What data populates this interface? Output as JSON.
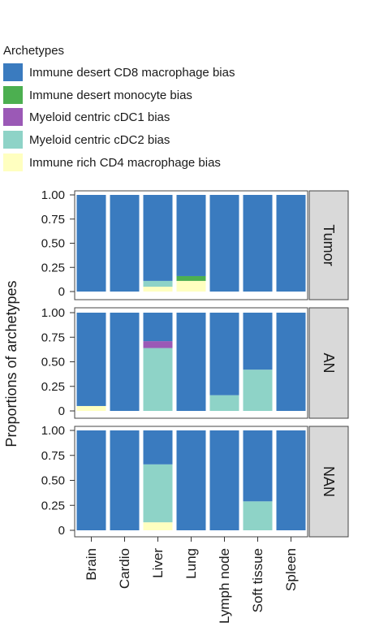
{
  "legend": {
    "title": "Archetypes",
    "items": [
      {
        "label": "Immune desert CD8 macrophage bias",
        "color": "#3a7bbf"
      },
      {
        "label": "Immune desert monocyte bias",
        "color": "#4caf50"
      },
      {
        "label": "Myeloid centric cDC1 bias",
        "color": "#9b59b6"
      },
      {
        "label": "Myeloid centric cDC2 bias",
        "color": "#8ed3c7"
      },
      {
        "label": "Immune rich CD4 macrophage bias",
        "color": "#ffffc0"
      }
    ]
  },
  "chart_data": {
    "type": "bar",
    "stacked": true,
    "ylabel": "Proportions of archetypes",
    "ylim": [
      0,
      1
    ],
    "yticks": [
      "0",
      "0.25",
      "0.50",
      "0.75",
      "1.00"
    ],
    "categories": [
      "Brain",
      "Cardio",
      "Liver",
      "Lung",
      "Lymph node",
      "Soft tissue",
      "Spleen"
    ],
    "facets": [
      {
        "label": "Tumor",
        "series": [
          {
            "name": "Immune rich CD4 macrophage bias",
            "values": [
              0,
              0,
              0.05,
              0.11,
              0,
              0,
              0
            ]
          },
          {
            "name": "Myeloid centric cDC2 bias",
            "values": [
              0,
              0,
              0.06,
              0,
              0,
              0,
              0
            ]
          },
          {
            "name": "Myeloid centric cDC1 bias",
            "values": [
              0,
              0,
              0,
              0,
              0,
              0,
              0
            ]
          },
          {
            "name": "Immune desert monocyte bias",
            "values": [
              0,
              0,
              0,
              0.05,
              0,
              0,
              0
            ]
          },
          {
            "name": "Immune desert CD8 macrophage bias",
            "values": [
              1,
              1,
              0.89,
              0.84,
              1,
              1,
              1
            ]
          }
        ]
      },
      {
        "label": "AN",
        "series": [
          {
            "name": "Immune rich CD4 macrophage bias",
            "values": [
              0.05,
              0,
              0,
              0,
              0,
              0,
              0
            ]
          },
          {
            "name": "Myeloid centric cDC2 bias",
            "values": [
              0,
              0,
              0.64,
              0,
              0.16,
              0.42,
              0
            ]
          },
          {
            "name": "Myeloid centric cDC1 bias",
            "values": [
              0,
              0,
              0.07,
              0,
              0,
              0,
              0
            ]
          },
          {
            "name": "Immune desert monocyte bias",
            "values": [
              0,
              0,
              0,
              0,
              0,
              0,
              0
            ]
          },
          {
            "name": "Immune desert CD8 macrophage bias",
            "values": [
              0.95,
              1,
              0.29,
              1,
              0.84,
              0.58,
              1
            ]
          }
        ]
      },
      {
        "label": "NAN",
        "series": [
          {
            "name": "Immune rich CD4 macrophage bias",
            "values": [
              0,
              0,
              0.08,
              0,
              0,
              0,
              0
            ]
          },
          {
            "name": "Myeloid centric cDC2 bias",
            "values": [
              0,
              0,
              0.58,
              0,
              0,
              0.29,
              0
            ]
          },
          {
            "name": "Myeloid centric cDC1 bias",
            "values": [
              0,
              0,
              0,
              0,
              0,
              0,
              0
            ]
          },
          {
            "name": "Immune desert monocyte bias",
            "values": [
              0,
              0,
              0,
              0,
              0,
              0,
              0
            ]
          },
          {
            "name": "Immune desert CD8 macrophage bias",
            "values": [
              1,
              1,
              0.34,
              1,
              1,
              0.71,
              1
            ]
          }
        ]
      }
    ]
  }
}
